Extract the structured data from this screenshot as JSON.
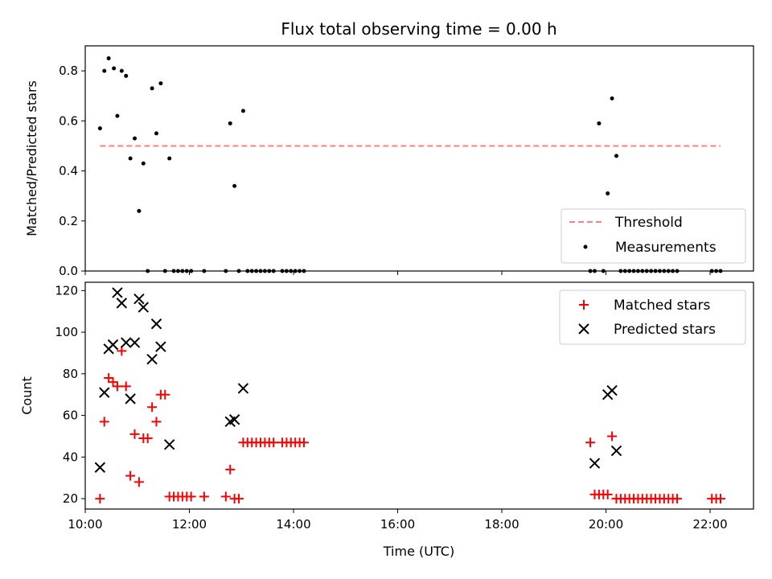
{
  "chart_data": {
    "title": "Flux total observing time = 0.00 h",
    "xlabel": "Time (UTC)",
    "xlim": [
      "10:00",
      "22:50"
    ],
    "x_ticks": [
      "10:00",
      "12:00",
      "14:00",
      "16:00",
      "18:00",
      "20:00",
      "22:00"
    ],
    "top": {
      "type": "scatter",
      "ylabel": "Matched/Predicted stars",
      "ylim": [
        0,
        0.9
      ],
      "y_ticks": [
        "0.0",
        "0.2",
        "0.4",
        "0.6",
        "0.8"
      ],
      "legend_position": "lower-right",
      "threshold": {
        "name": "Threshold",
        "value": 0.5,
        "x_range": [
          "10:17",
          "22:12"
        ],
        "color": "#ff7f7f"
      },
      "measurements": {
        "name": "Measurements",
        "color": "#000000",
        "x": [
          "10:17",
          "10:22",
          "10:27",
          "10:33",
          "10:37",
          "10:42",
          "10:47",
          "10:52",
          "10:57",
          "11:02",
          "11:07",
          "11:12",
          "11:17",
          "11:22",
          "11:27",
          "11:32",
          "11:37",
          "11:42",
          "11:47",
          "11:52",
          "11:57",
          "12:02",
          "12:17",
          "12:42",
          "12:47",
          "12:52",
          "12:57",
          "13:02",
          "13:07",
          "13:12",
          "13:17",
          "13:22",
          "13:27",
          "13:32",
          "13:37",
          "13:47",
          "13:52",
          "13:57",
          "14:02",
          "14:07",
          "14:12",
          "19:42",
          "19:47",
          "19:52",
          "19:57",
          "20:02",
          "20:07",
          "20:12",
          "20:17",
          "20:22",
          "20:27",
          "20:32",
          "20:37",
          "20:42",
          "20:47",
          "20:52",
          "20:57",
          "21:02",
          "21:07",
          "21:12",
          "21:17",
          "21:22",
          "22:02",
          "22:07",
          "22:12"
        ],
        "y": [
          0.57,
          0.8,
          0.85,
          0.81,
          0.62,
          0.8,
          0.78,
          0.45,
          0.53,
          0.24,
          0.43,
          0.0,
          0.73,
          0.55,
          0.75,
          0.0,
          0.45,
          0.0,
          0.0,
          0.0,
          0.0,
          0.0,
          0.0,
          0.0,
          0.59,
          0.34,
          0.0,
          0.64,
          0.0,
          0.0,
          0.0,
          0.0,
          0.0,
          0.0,
          0.0,
          0.0,
          0.0,
          0.0,
          0.0,
          0.0,
          0.0,
          0.0,
          0.0,
          0.59,
          0.0,
          0.31,
          0.69,
          0.46,
          0.0,
          0.0,
          0.0,
          0.0,
          0.0,
          0.0,
          0.0,
          0.0,
          0.0,
          0.0,
          0.0,
          0.0,
          0.0,
          0.0,
          0.0,
          0.0,
          0.0
        ]
      }
    },
    "bottom": {
      "type": "scatter",
      "ylabel": "Count",
      "ylim": [
        15,
        124
      ],
      "y_ticks": [
        "20",
        "40",
        "60",
        "80",
        "100",
        "120"
      ],
      "legend_position": "upper-right",
      "series": [
        {
          "name": "Matched stars",
          "marker": "+",
          "color": "#ff0000",
          "x": [
            "10:17",
            "10:22",
            "10:27",
            "10:32",
            "10:37",
            "10:42",
            "10:47",
            "10:52",
            "10:57",
            "11:02",
            "11:07",
            "11:12",
            "11:17",
            "11:22",
            "11:27",
            "11:32",
            "11:37",
            "11:42",
            "11:47",
            "11:52",
            "11:57",
            "12:02",
            "12:17",
            "12:42",
            "12:47",
            "12:52",
            "12:57",
            "13:02",
            "13:07",
            "13:12",
            "13:17",
            "13:22",
            "13:27",
            "13:32",
            "13:37",
            "13:47",
            "13:52",
            "13:57",
            "14:02",
            "14:07",
            "14:12",
            "19:42",
            "19:47",
            "19:52",
            "19:57",
            "20:02",
            "20:07",
            "20:12",
            "20:17",
            "20:22",
            "20:27",
            "20:32",
            "20:37",
            "20:42",
            "20:47",
            "20:52",
            "20:57",
            "21:02",
            "21:07",
            "21:12",
            "21:17",
            "21:22",
            "22:02",
            "22:07",
            "22:12"
          ],
          "y": [
            20,
            57,
            78,
            76,
            74,
            91,
            74,
            31,
            51,
            28,
            49,
            49,
            64,
            57,
            70,
            70,
            21,
            21,
            21,
            21,
            21,
            21,
            21,
            21,
            34,
            20,
            20,
            47,
            47,
            47,
            47,
            47,
            47,
            47,
            47,
            47,
            47,
            47,
            47,
            47,
            47,
            47,
            22,
            22,
            22,
            22,
            50,
            20,
            20,
            20,
            20,
            20,
            20,
            20,
            20,
            20,
            20,
            20,
            20,
            20,
            20,
            20,
            20,
            20,
            20
          ]
        },
        {
          "name": "Predicted stars",
          "marker": "x",
          "color": "#000000",
          "x": [
            "10:17",
            "10:22",
            "10:27",
            "10:32",
            "10:37",
            "10:42",
            "10:47",
            "10:52",
            "10:57",
            "11:02",
            "11:07",
            "11:17",
            "11:22",
            "11:27",
            "11:37",
            "12:47",
            "12:52",
            "13:02",
            "19:47",
            "20:02",
            "20:07",
            "20:12"
          ],
          "y": [
            35,
            71,
            92,
            94,
            119,
            114,
            95,
            68,
            95,
            116,
            112,
            87,
            104,
            93,
            46,
            57,
            58,
            73,
            37,
            70,
            72,
            43
          ]
        }
      ]
    }
  }
}
